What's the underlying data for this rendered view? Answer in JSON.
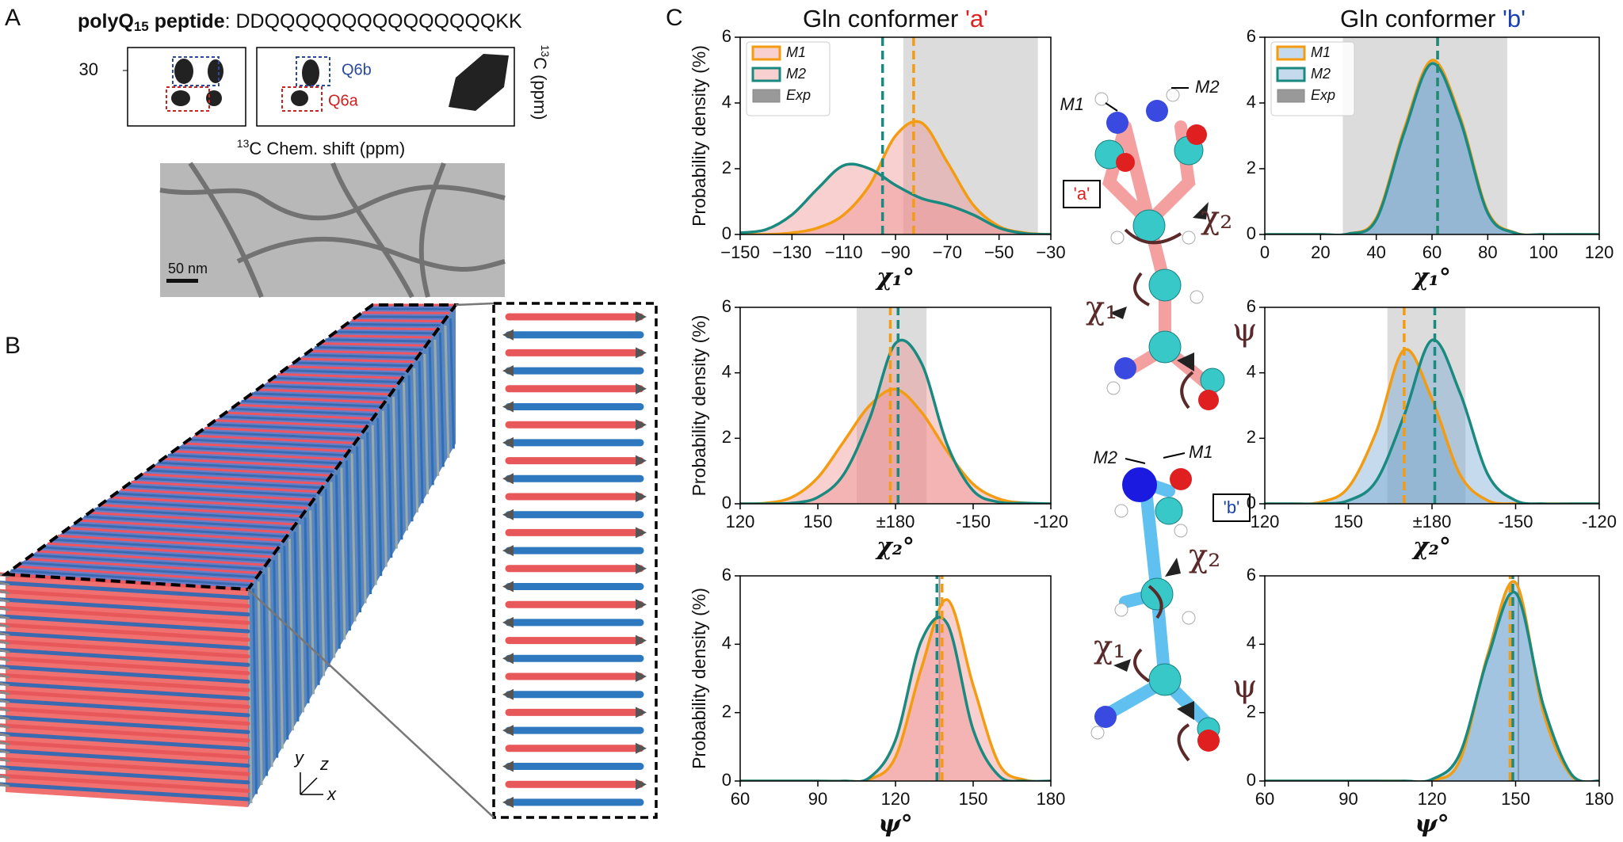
{
  "panels": {
    "a": "A",
    "b": "B",
    "c": "C"
  },
  "panel_a": {
    "peptide": "polyQ",
    "peptide_sub": "15",
    "peptide_word": " peptide",
    "sequence": ": DDQQQQQQQQQQQQQQQKK",
    "tick": "30",
    "q6b": "Q6b",
    "q6a": "Q6a",
    "xlabel_sup": "13",
    "xlabel": "C Chem. shift (ppm)",
    "ylabel_sup": "13",
    "ylabel": "C (ppm)",
    "scale_bar": "50 nm"
  },
  "panel_b": {
    "axis_y": "y",
    "axis_z": "z",
    "axis_x": "x"
  },
  "column_titles": [
    {
      "text": "Gln conformer ",
      "tag": "'a'",
      "tag_color": "#e02020"
    },
    {
      "text": "Gln conformer ",
      "tag": "'b'",
      "tag_color": "#1a3fb0"
    }
  ],
  "molecules": {
    "top": {
      "m1": "M1",
      "m2": "M2",
      "tag": "'a'",
      "chi2": "χ₂",
      "chi1": "χ₁",
      "psi": "ψ"
    },
    "bottom": {
      "m1": "M1",
      "m2": "M2",
      "tag": "'b'",
      "chi2": "χ₂",
      "chi1": "χ₁",
      "psi": "ψ"
    }
  },
  "chart_data": [
    {
      "type": "line",
      "xlabel": "χ₁°",
      "ylabel": "Probability density (%)",
      "xlim": [
        -150,
        -30
      ],
      "xticks": [
        {
          "value": -150,
          "label": "−150"
        },
        {
          "value": -130,
          "label": "−130"
        },
        {
          "value": -110,
          "label": "−110"
        },
        {
          "value": -90,
          "label": "−90"
        },
        {
          "value": -70,
          "label": "−70"
        },
        {
          "value": -50,
          "label": "−50"
        },
        {
          "value": -30,
          "label": "−30"
        }
      ],
      "ylim": [
        0,
        6
      ],
      "yticks": [
        0,
        2,
        4,
        6
      ],
      "fill": "#f08a8a",
      "legend": true,
      "exp": {
        "name": "Exp",
        "color": "#c4c4c4",
        "range": [
          -87,
          -35
        ]
      },
      "x": [
        -150,
        -140,
        -130,
        -120,
        -110,
        -100,
        -90,
        -80,
        -70,
        -60,
        -50,
        -40,
        -30
      ],
      "series": [
        {
          "name": "M1",
          "color": "#f39c12",
          "mean": -83,
          "values": [
            0,
            0,
            0.05,
            0.2,
            0.6,
            1.5,
            3.0,
            3.4,
            2.2,
            0.9,
            0.25,
            0.05,
            0
          ]
        },
        {
          "name": "M2",
          "color": "#1a8a80",
          "mean": -95,
          "values": [
            0.05,
            0.15,
            0.6,
            1.4,
            2.1,
            2.0,
            1.5,
            1.1,
            0.9,
            0.6,
            0.2,
            0.03,
            0
          ]
        }
      ]
    },
    {
      "type": "line",
      "xlabel": "χ₁°",
      "xlim": [
        0,
        120
      ],
      "xticks": [
        0,
        20,
        40,
        60,
        80,
        100,
        120
      ],
      "ylim": [
        0,
        6
      ],
      "yticks": [
        0,
        2,
        4,
        6
      ],
      "fill": "#6fa3d0",
      "legend": true,
      "exp": {
        "name": "Exp",
        "color": "#c4c4c4",
        "range": [
          28,
          87
        ]
      },
      "x": [
        0,
        10,
        20,
        30,
        40,
        50,
        60,
        70,
        80,
        90,
        100,
        110,
        120
      ],
      "series": [
        {
          "name": "M1",
          "color": "#f39c12",
          "mean": 62,
          "values": [
            0,
            0,
            0,
            0.02,
            0.5,
            3.2,
            5.3,
            3.6,
            0.7,
            0.05,
            0,
            0,
            0
          ]
        },
        {
          "name": "M2",
          "color": "#1a8a80",
          "mean": 62,
          "values": [
            0,
            0,
            0,
            0.02,
            0.45,
            3.1,
            5.2,
            3.5,
            0.65,
            0.04,
            0,
            0,
            0
          ]
        }
      ]
    },
    {
      "type": "line",
      "xlabel": "χ₂°",
      "ylabel": "Probability density (%)",
      "xlim": [
        120,
        240
      ],
      "xticks": [
        120,
        150,
        {
          "value": 180,
          "label": "±180"
        },
        {
          "value": 210,
          "label": "-150"
        },
        {
          "value": 240,
          "label": "-120"
        }
      ],
      "ylim": [
        0,
        6
      ],
      "yticks": [
        0,
        2,
        4,
        6
      ],
      "fill": "#f08a8a",
      "exp": {
        "range": [
          165,
          192
        ],
        "color": "#c4c4c4"
      },
      "x": [
        120,
        130,
        140,
        150,
        160,
        170,
        180,
        190,
        200,
        210,
        220,
        230,
        240
      ],
      "series": [
        {
          "name": "M1",
          "color": "#f39c12",
          "mean": 178,
          "values": [
            0,
            0.02,
            0.2,
            0.8,
            1.9,
            3.0,
            3.5,
            2.8,
            1.6,
            0.6,
            0.15,
            0.02,
            0
          ]
        },
        {
          "name": "M2",
          "color": "#1a8a80",
          "mean": 181,
          "values": [
            0,
            0,
            0.02,
            0.2,
            0.9,
            2.6,
            4.9,
            4.3,
            1.8,
            0.4,
            0.05,
            0.02,
            0
          ]
        }
      ]
    },
    {
      "type": "line",
      "xlabel": "χ₂°",
      "xlim": [
        120,
        240
      ],
      "xticks": [
        120,
        150,
        {
          "value": 180,
          "label": "±180"
        },
        {
          "value": 210,
          "label": "-150"
        },
        {
          "value": 240,
          "label": "-120"
        }
      ],
      "ylim": [
        0,
        6
      ],
      "yticks": [
        0,
        2,
        4,
        6
      ],
      "fill": "#6fa3d0",
      "exp": {
        "range": [
          164,
          192
        ],
        "color": "#c4c4c4"
      },
      "x": [
        120,
        130,
        140,
        150,
        160,
        170,
        180,
        190,
        200,
        210,
        220,
        230,
        240
      ],
      "series": [
        {
          "name": "M1",
          "color": "#f39c12",
          "mean": 170,
          "values": [
            0,
            0,
            0.05,
            0.5,
            2.2,
            4.7,
            3.2,
            0.9,
            0.1,
            0,
            0,
            0,
            0
          ]
        },
        {
          "name": "M2",
          "color": "#1a8a80",
          "mean": 181,
          "values": [
            0,
            0,
            0,
            0.1,
            0.7,
            2.7,
            5.0,
            3.4,
            0.9,
            0.1,
            0,
            0,
            0
          ]
        }
      ]
    },
    {
      "type": "line",
      "xlabel": "ψ°",
      "ylabel": "Probability density (%)",
      "xlim": [
        60,
        180
      ],
      "xticks": [
        60,
        90,
        120,
        150,
        180
      ],
      "ylim": [
        0,
        6
      ],
      "yticks": [
        0,
        2,
        4,
        6
      ],
      "fill": "#f08a8a",
      "exp": {
        "value": 137,
        "color": "#909090"
      },
      "x": [
        60,
        70,
        80,
        90,
        100,
        110,
        120,
        130,
        140,
        150,
        160,
        170,
        180
      ],
      "series": [
        {
          "name": "M1",
          "color": "#f39c12",
          "mean": 138,
          "values": [
            0,
            0,
            0,
            0,
            0,
            0.05,
            0.7,
            3.3,
            5.3,
            2.8,
            0.5,
            0.03,
            0
          ]
        },
        {
          "name": "M2",
          "color": "#1a8a80",
          "mean": 136,
          "values": [
            0,
            0,
            0,
            0,
            0,
            0.1,
            1.2,
            4.1,
            4.6,
            1.5,
            0.15,
            0,
            0
          ]
        }
      ]
    },
    {
      "type": "line",
      "xlabel": "ψ°",
      "xlim": [
        60,
        180
      ],
      "xticks": [
        60,
        90,
        120,
        150,
        180
      ],
      "ylim": [
        0,
        6
      ],
      "yticks": [
        0,
        2,
        4,
        6
      ],
      "fill": "#6fa3d0",
      "exp": {
        "value": 151,
        "color": "#909090"
      },
      "x": [
        60,
        70,
        80,
        90,
        100,
        110,
        120,
        130,
        140,
        150,
        160,
        170,
        180
      ],
      "series": [
        {
          "name": "M1",
          "color": "#f39c12",
          "mean": 148,
          "values": [
            0,
            0,
            0,
            0,
            0,
            0,
            0.02,
            0.6,
            3.7,
            5.8,
            2.0,
            0.15,
            0
          ]
        },
        {
          "name": "M2",
          "color": "#1a8a80",
          "mean": 149,
          "values": [
            0,
            0,
            0,
            0,
            0,
            0,
            0.05,
            0.8,
            3.6,
            5.5,
            2.2,
            0.2,
            0
          ]
        }
      ]
    }
  ]
}
